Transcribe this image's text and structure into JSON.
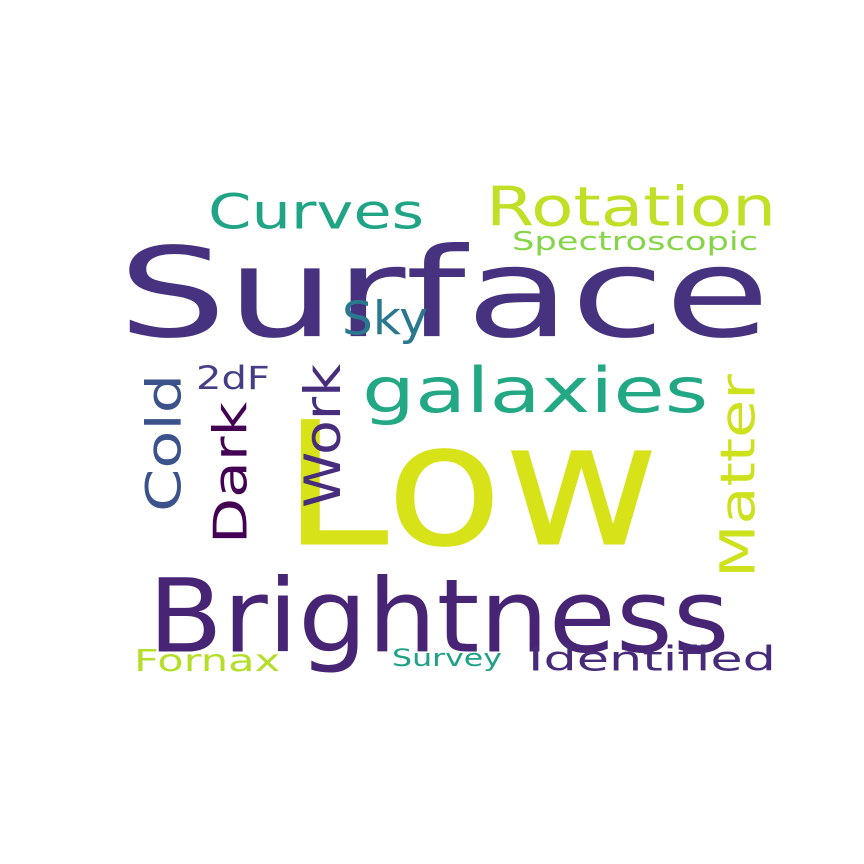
{
  "words": {
    "w01": {
      "text": "Surface",
      "color": "#46327e"
    },
    "w02": {
      "text": "Low",
      "color": "#d8e219"
    },
    "w03": {
      "text": "Brightness",
      "color": "#482475"
    },
    "w04": {
      "text": "galaxies",
      "color": "#22a884"
    },
    "w05": {
      "text": "Rotation",
      "color": "#c0df25"
    },
    "w06": {
      "text": "Curves",
      "color": "#20a486"
    },
    "w07": {
      "text": "Spectroscopic",
      "color": "#86d549"
    },
    "w08": {
      "text": "Sky",
      "color": "#2a788e"
    },
    "w09": {
      "text": "2dF",
      "color": "#433e85"
    },
    "w10": {
      "text": "Cold",
      "color": "#3b528b"
    },
    "w11": {
      "text": "Dark",
      "color": "#440154"
    },
    "w12": {
      "text": "Work",
      "color": "#472d7b"
    },
    "w13": {
      "text": "Matter",
      "color": "#cde11d"
    },
    "w14": {
      "text": "Fornax",
      "color": "#b5de2b"
    },
    "w15": {
      "text": "Survey",
      "color": "#1fa187"
    },
    "w16": {
      "text": "Identified",
      "color": "#472a7a"
    }
  }
}
